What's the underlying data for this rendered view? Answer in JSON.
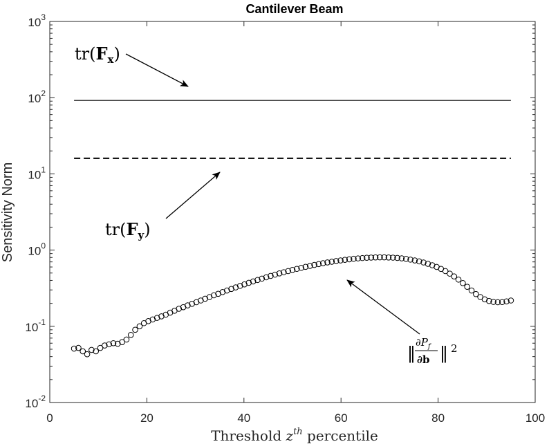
{
  "chart_data": {
    "type": "line",
    "title": "Cantilever Beam",
    "xlabel": "Threshold z^th percentile",
    "xlabel_parts": {
      "prefix": "Threshold ",
      "var": "z",
      "sup": "th",
      "suffix": " percentile"
    },
    "ylabel": "Sensitivity Norm",
    "xlim": [
      0,
      100
    ],
    "ylim": [
      0.01,
      1000
    ],
    "yscale": "log",
    "grid": false,
    "x_ticks": [
      0,
      20,
      40,
      60,
      80,
      100
    ],
    "y_ticks": [
      {
        "value": 0.01,
        "base": "10",
        "exp": "-2"
      },
      {
        "value": 0.1,
        "base": "10",
        "exp": "-1"
      },
      {
        "value": 1,
        "base": "10",
        "exp": "0"
      },
      {
        "value": 10,
        "base": "10",
        "exp": "1"
      },
      {
        "value": 100,
        "base": "10",
        "exp": "2"
      },
      {
        "value": 1000,
        "base": "10",
        "exp": "3"
      }
    ],
    "series": [
      {
        "name": "tr(Fx)",
        "style": "solid",
        "color": "#000000",
        "x": [
          5,
          95
        ],
        "y": [
          92,
          92
        ]
      },
      {
        "name": "tr(Fy)",
        "style": "dashed",
        "color": "#000000",
        "x": [
          5,
          95
        ],
        "y": [
          16,
          16
        ]
      },
      {
        "name": "||dPf/db||^2",
        "style": "circle-markers",
        "color": "#000000",
        "x": [
          5,
          5.9,
          6.8,
          7.7,
          8.6,
          9.5,
          10.4,
          11.3,
          12.2,
          13.1,
          14,
          14.9,
          15.8,
          16.7,
          17.6,
          18.5,
          19.4,
          20.3,
          21.2,
          22.1,
          23,
          23.9,
          24.8,
          25.7,
          26.6,
          27.5,
          28.4,
          29.3,
          30.2,
          31.1,
          32,
          32.9,
          33.8,
          34.7,
          35.6,
          36.5,
          37.4,
          38.3,
          39.2,
          40.1,
          41,
          41.9,
          42.8,
          43.7,
          44.6,
          45.5,
          46.4,
          47.3,
          48.2,
          49.1,
          50,
          50.9,
          51.8,
          52.7,
          53.6,
          54.5,
          55.4,
          56.3,
          57.2,
          58.1,
          59,
          59.9,
          60.8,
          61.7,
          62.6,
          63.5,
          64.4,
          65.3,
          66.2,
          67.1,
          68,
          68.9,
          69.8,
          70.7,
          71.6,
          72.5,
          73.4,
          74.3,
          75.2,
          76.1,
          77,
          77.9,
          78.8,
          79.7,
          80.6,
          81.5,
          82.4,
          83.3,
          84.2,
          85.1,
          86,
          86.9,
          87.8,
          88.7,
          89.6,
          90.5,
          91.4,
          92.3,
          93.2,
          94.1,
          95
        ],
        "y": [
          0.051,
          0.052,
          0.047,
          0.043,
          0.049,
          0.047,
          0.052,
          0.056,
          0.058,
          0.06,
          0.059,
          0.062,
          0.067,
          0.077,
          0.09,
          0.1,
          0.11,
          0.117,
          0.123,
          0.129,
          0.135,
          0.142,
          0.151,
          0.16,
          0.17,
          0.178,
          0.188,
          0.197,
          0.207,
          0.218,
          0.23,
          0.242,
          0.255,
          0.267,
          0.281,
          0.295,
          0.309,
          0.324,
          0.339,
          0.355,
          0.372,
          0.388,
          0.405,
          0.422,
          0.44,
          0.458,
          0.476,
          0.494,
          0.512,
          0.53,
          0.549,
          0.567,
          0.585,
          0.603,
          0.621,
          0.639,
          0.656,
          0.673,
          0.689,
          0.704,
          0.718,
          0.732,
          0.745,
          0.757,
          0.768,
          0.778,
          0.786,
          0.793,
          0.798,
          0.801,
          0.803,
          0.803,
          0.8,
          0.796,
          0.789,
          0.779,
          0.766,
          0.75,
          0.732,
          0.711,
          0.688,
          0.661,
          0.632,
          0.601,
          0.566,
          0.53,
          0.491,
          0.451,
          0.41,
          0.369,
          0.33,
          0.295,
          0.265,
          0.242,
          0.226,
          0.215,
          0.209,
          0.207,
          0.208,
          0.212,
          0.218
        ]
      }
    ],
    "annotations": [
      {
        "id": "fx",
        "label": {
          "func": "tr(",
          "bold": "F",
          "sub": "x",
          "close": ")"
        }
      },
      {
        "id": "fy",
        "label": {
          "func": "tr(",
          "bold": "F",
          "sub": "y",
          "close": ")"
        }
      },
      {
        "id": "grad",
        "label": {
          "num": "∂P",
          "num_sub": "f",
          "den": "∂b",
          "exp": "2"
        }
      }
    ]
  }
}
